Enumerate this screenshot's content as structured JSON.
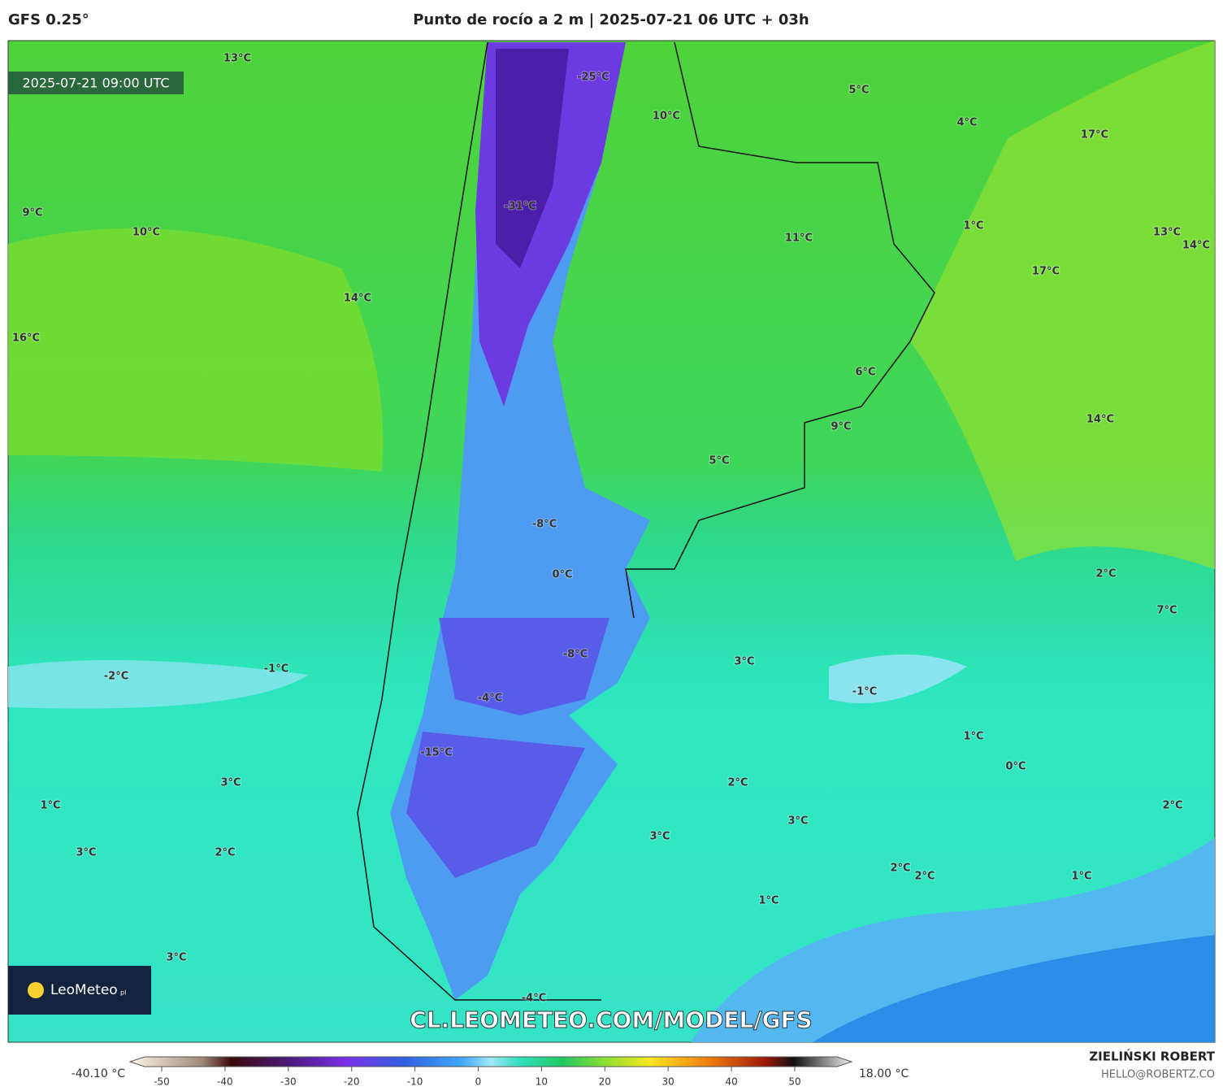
{
  "header": {
    "model": "GFS 0.25°",
    "title": "Punto de rocío a 2 m | 2025-07-21 06 UTC + 03h"
  },
  "map": {
    "valid_time": "2025-07-21 09:00 UTC",
    "watermark": "CL.LEOMETEO.COM/MODEL/GFS",
    "logo": "LeoMeteo",
    "logo_suffix": "pl",
    "labels": [
      "13°C",
      "-25°C",
      "10°C",
      "5°C",
      "4°C",
      "17°C",
      "9°C",
      "10°C",
      "-31°C",
      "11°C",
      "1°C",
      "13°C",
      "14°C",
      "17°C",
      "14°C",
      "16°C",
      "6°C",
      "9°C",
      "14°C",
      "5°C",
      "-8°C",
      "0°C",
      "2°C",
      "7°C",
      "-8°C",
      "3°C",
      "-2°C",
      "-1°C",
      "-1°C",
      "-4°C",
      "1°C",
      "-15°C",
      "0°C",
      "3°C",
      "2°C",
      "1°C",
      "2°C",
      "3°C",
      "3°C",
      "3°C",
      "2°C",
      "2°C",
      "2°C",
      "1°C",
      "1°C",
      "3°C",
      "-4°C"
    ]
  },
  "colorbar": {
    "min_label": "-40.10 °C",
    "max_label": "18.00 °C",
    "ticks": [
      -50,
      -40,
      -30,
      -20,
      -10,
      0,
      10,
      20,
      30,
      40,
      50
    ]
  },
  "footer": {
    "author": "ZIELIŃSKI ROBERT",
    "email": "HELLO@ROBERTZ.CO"
  }
}
